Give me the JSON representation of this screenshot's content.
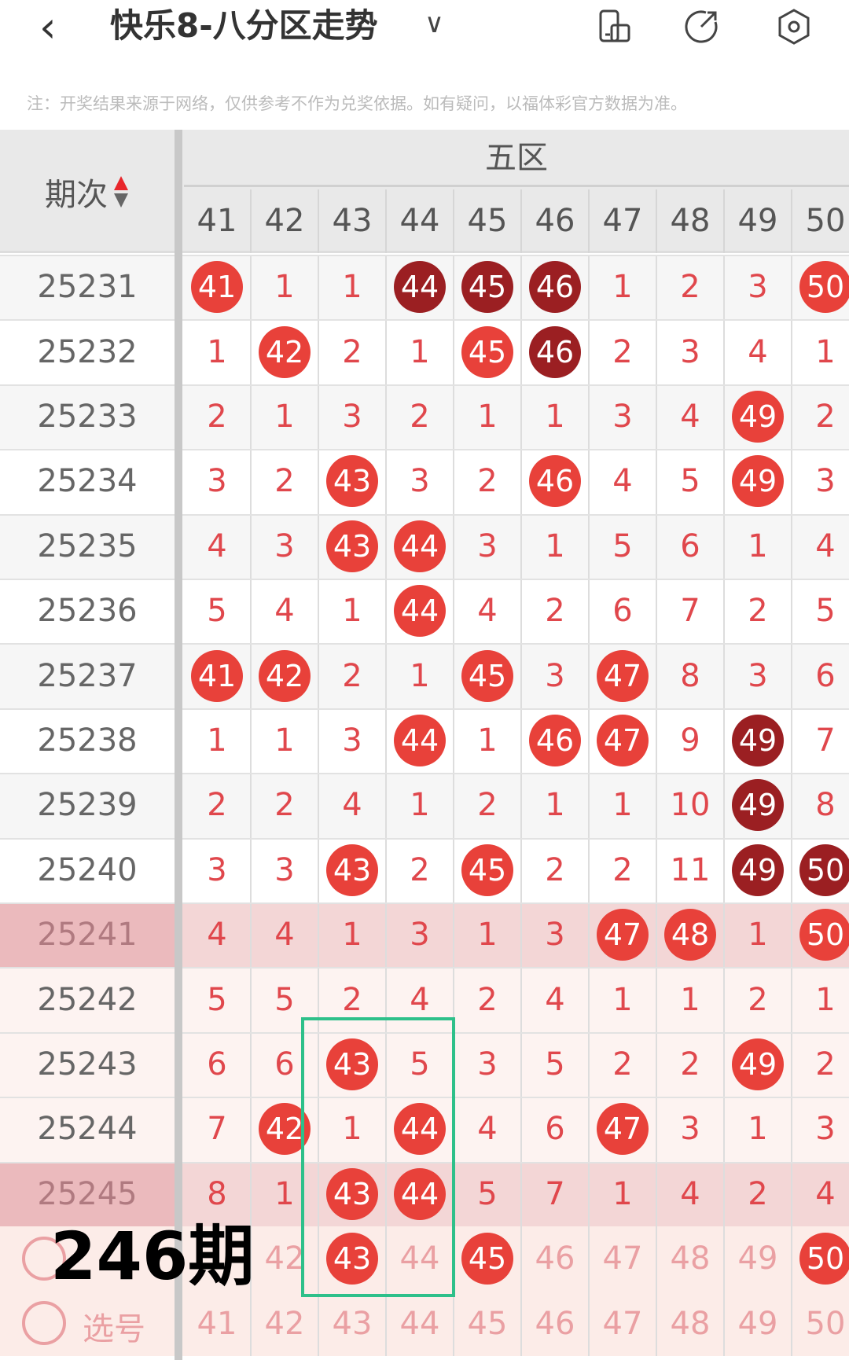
{
  "header": {
    "back_icon": "chevron-left-icon",
    "title": "快乐8-八分区走势",
    "dropdown_icon": "chevron-down-icon",
    "icons": [
      "phone-layout-icon",
      "share-icon",
      "settings-icon"
    ]
  },
  "note": "注：开奖结果来源于网络，仅供参考不作为兑奖依据。如有疑问，以福体彩官方数据为准。",
  "table": {
    "period_header": "期次",
    "zone_label": "五区",
    "columns": [
      "41",
      "42",
      "43",
      "44",
      "45",
      "46",
      "47",
      "48",
      "49",
      "50"
    ],
    "colors": {
      "ball_red": "#e8413a",
      "ball_dark": "#9b1f22",
      "miss_text": "#e0474c",
      "highlight_row": "#f3d6d6"
    },
    "rows": [
      {
        "period": "25231",
        "cells": [
          "41",
          "1",
          "1",
          "44",
          "45",
          "46",
          "1",
          "2",
          "3",
          "50"
        ],
        "balls": [
          "r",
          "",
          "",
          "d",
          "d",
          "d",
          "",
          "",
          "",
          "r"
        ]
      },
      {
        "period": "25232",
        "cells": [
          "1",
          "42",
          "2",
          "1",
          "45",
          "46",
          "2",
          "3",
          "4",
          "1"
        ],
        "balls": [
          "",
          "r",
          "",
          "",
          "r",
          "d",
          "",
          "",
          "",
          ""
        ]
      },
      {
        "period": "25233",
        "cells": [
          "2",
          "1",
          "3",
          "2",
          "1",
          "1",
          "3",
          "4",
          "49",
          "2"
        ],
        "balls": [
          "",
          "",
          "",
          "",
          "",
          "",
          "",
          "",
          "r",
          ""
        ]
      },
      {
        "period": "25234",
        "cells": [
          "3",
          "2",
          "43",
          "3",
          "2",
          "46",
          "4",
          "5",
          "49",
          "3"
        ],
        "balls": [
          "",
          "",
          "r",
          "",
          "",
          "r",
          "",
          "",
          "r",
          ""
        ]
      },
      {
        "period": "25235",
        "cells": [
          "4",
          "3",
          "43",
          "44",
          "3",
          "1",
          "5",
          "6",
          "1",
          "4"
        ],
        "balls": [
          "",
          "",
          "r",
          "r",
          "",
          "",
          "",
          "",
          "",
          ""
        ]
      },
      {
        "period": "25236",
        "cells": [
          "5",
          "4",
          "1",
          "44",
          "4",
          "2",
          "6",
          "7",
          "2",
          "5"
        ],
        "balls": [
          "",
          "",
          "",
          "r",
          "",
          "",
          "",
          "",
          "",
          ""
        ]
      },
      {
        "period": "25237",
        "cells": [
          "41",
          "42",
          "2",
          "1",
          "45",
          "3",
          "47",
          "8",
          "3",
          "6"
        ],
        "balls": [
          "r",
          "r",
          "",
          "",
          "r",
          "",
          "r",
          "",
          "",
          ""
        ]
      },
      {
        "period": "25238",
        "cells": [
          "1",
          "1",
          "3",
          "44",
          "1",
          "46",
          "47",
          "9",
          "49",
          "7"
        ],
        "balls": [
          "",
          "",
          "",
          "r",
          "",
          "r",
          "r",
          "",
          "d",
          ""
        ]
      },
      {
        "period": "25239",
        "cells": [
          "2",
          "2",
          "4",
          "1",
          "2",
          "1",
          "1",
          "10",
          "49",
          "8"
        ],
        "balls": [
          "",
          "",
          "",
          "",
          "",
          "",
          "",
          "",
          "d",
          ""
        ]
      },
      {
        "period": "25240",
        "cells": [
          "3",
          "3",
          "43",
          "2",
          "45",
          "2",
          "2",
          "11",
          "49",
          "50"
        ],
        "balls": [
          "",
          "",
          "r",
          "",
          "r",
          "",
          "",
          "",
          "d",
          "d"
        ]
      },
      {
        "period": "25241",
        "cells": [
          "4",
          "4",
          "1",
          "3",
          "1",
          "3",
          "47",
          "48",
          "1",
          "50"
        ],
        "balls": [
          "",
          "",
          "",
          "",
          "",
          "",
          "r",
          "r",
          "",
          "r"
        ],
        "highlight": true
      },
      {
        "period": "25242",
        "cells": [
          "5",
          "5",
          "2",
          "4",
          "2",
          "4",
          "1",
          "1",
          "2",
          "1"
        ],
        "balls": [
          "",
          "",
          "",
          "",
          "",
          "",
          "",
          "",
          "",
          ""
        ]
      },
      {
        "period": "25243",
        "cells": [
          "6",
          "6",
          "43",
          "5",
          "3",
          "5",
          "2",
          "2",
          "49",
          "2"
        ],
        "balls": [
          "",
          "",
          "r",
          "",
          "",
          "",
          "",
          "",
          "r",
          ""
        ]
      },
      {
        "period": "25244",
        "cells": [
          "7",
          "42",
          "1",
          "44",
          "4",
          "6",
          "47",
          "3",
          "1",
          "3"
        ],
        "balls": [
          "",
          "r",
          "",
          "r",
          "",
          "",
          "r",
          "",
          "",
          ""
        ]
      },
      {
        "period": "25245",
        "cells": [
          "8",
          "1",
          "43",
          "44",
          "5",
          "7",
          "1",
          "4",
          "2",
          "4"
        ],
        "balls": [
          "",
          "",
          "r",
          "r",
          "",
          "",
          "",
          "",
          "",
          ""
        ],
        "highlight": true
      }
    ],
    "prediction_row": {
      "cells": [
        "",
        "42",
        "43",
        "44",
        "45",
        "46",
        "47",
        "48",
        "49",
        "50"
      ],
      "balls": [
        "",
        "",
        "r",
        "",
        "r",
        "",
        "",
        "",
        "",
        "r"
      ]
    },
    "pick_row": {
      "label": "选号",
      "cells": [
        "41",
        "42",
        "43",
        "44",
        "45",
        "46",
        "47",
        "48",
        "49",
        "50"
      ]
    }
  },
  "overlay_text": "246期"
}
